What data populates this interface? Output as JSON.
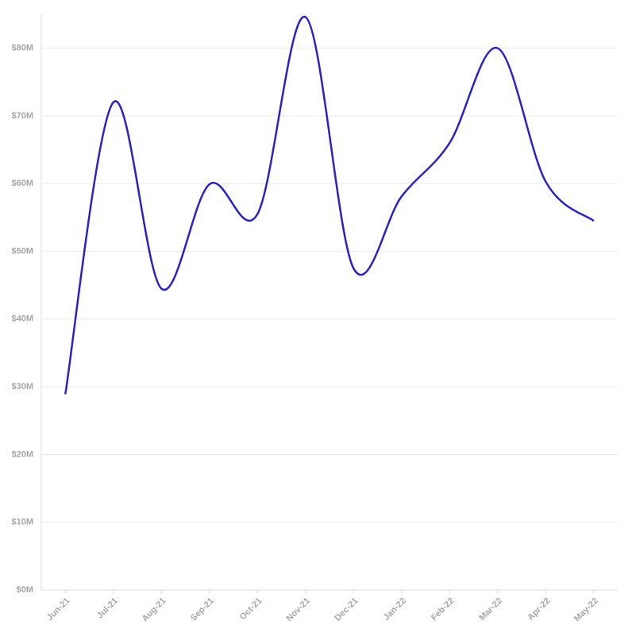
{
  "chart_data": {
    "type": "line",
    "categories": [
      "Jun-21",
      "Jul-21",
      "Aug-21",
      "Sep-21",
      "Oct-21",
      "Nov-21",
      "Dec-21",
      "Jan-22",
      "Feb-22",
      "Mar-22",
      "Apr-22",
      "May-22"
    ],
    "series": [
      {
        "color": "#2a22c9",
        "values": [
          28900000,
          72000000,
          44500000,
          59900000,
          55500000,
          84600000,
          47500000,
          58100000,
          66000000,
          80000000,
          60300000,
          54500000
        ]
      }
    ],
    "ylim": [
      0,
      85000000
    ],
    "yticks": [
      {
        "value": 0,
        "label": "$0M"
      },
      {
        "value": 10000000,
        "label": "$10M"
      },
      {
        "value": 20000000,
        "label": "$20M"
      },
      {
        "value": 30000000,
        "label": "$30M"
      },
      {
        "value": 40000000,
        "label": "$40M"
      },
      {
        "value": 50000000,
        "label": "$50M"
      },
      {
        "value": 60000000,
        "label": "$60M"
      },
      {
        "value": 70000000,
        "label": "$70M"
      },
      {
        "value": 80000000,
        "label": "$80M"
      }
    ],
    "grid": true
  }
}
